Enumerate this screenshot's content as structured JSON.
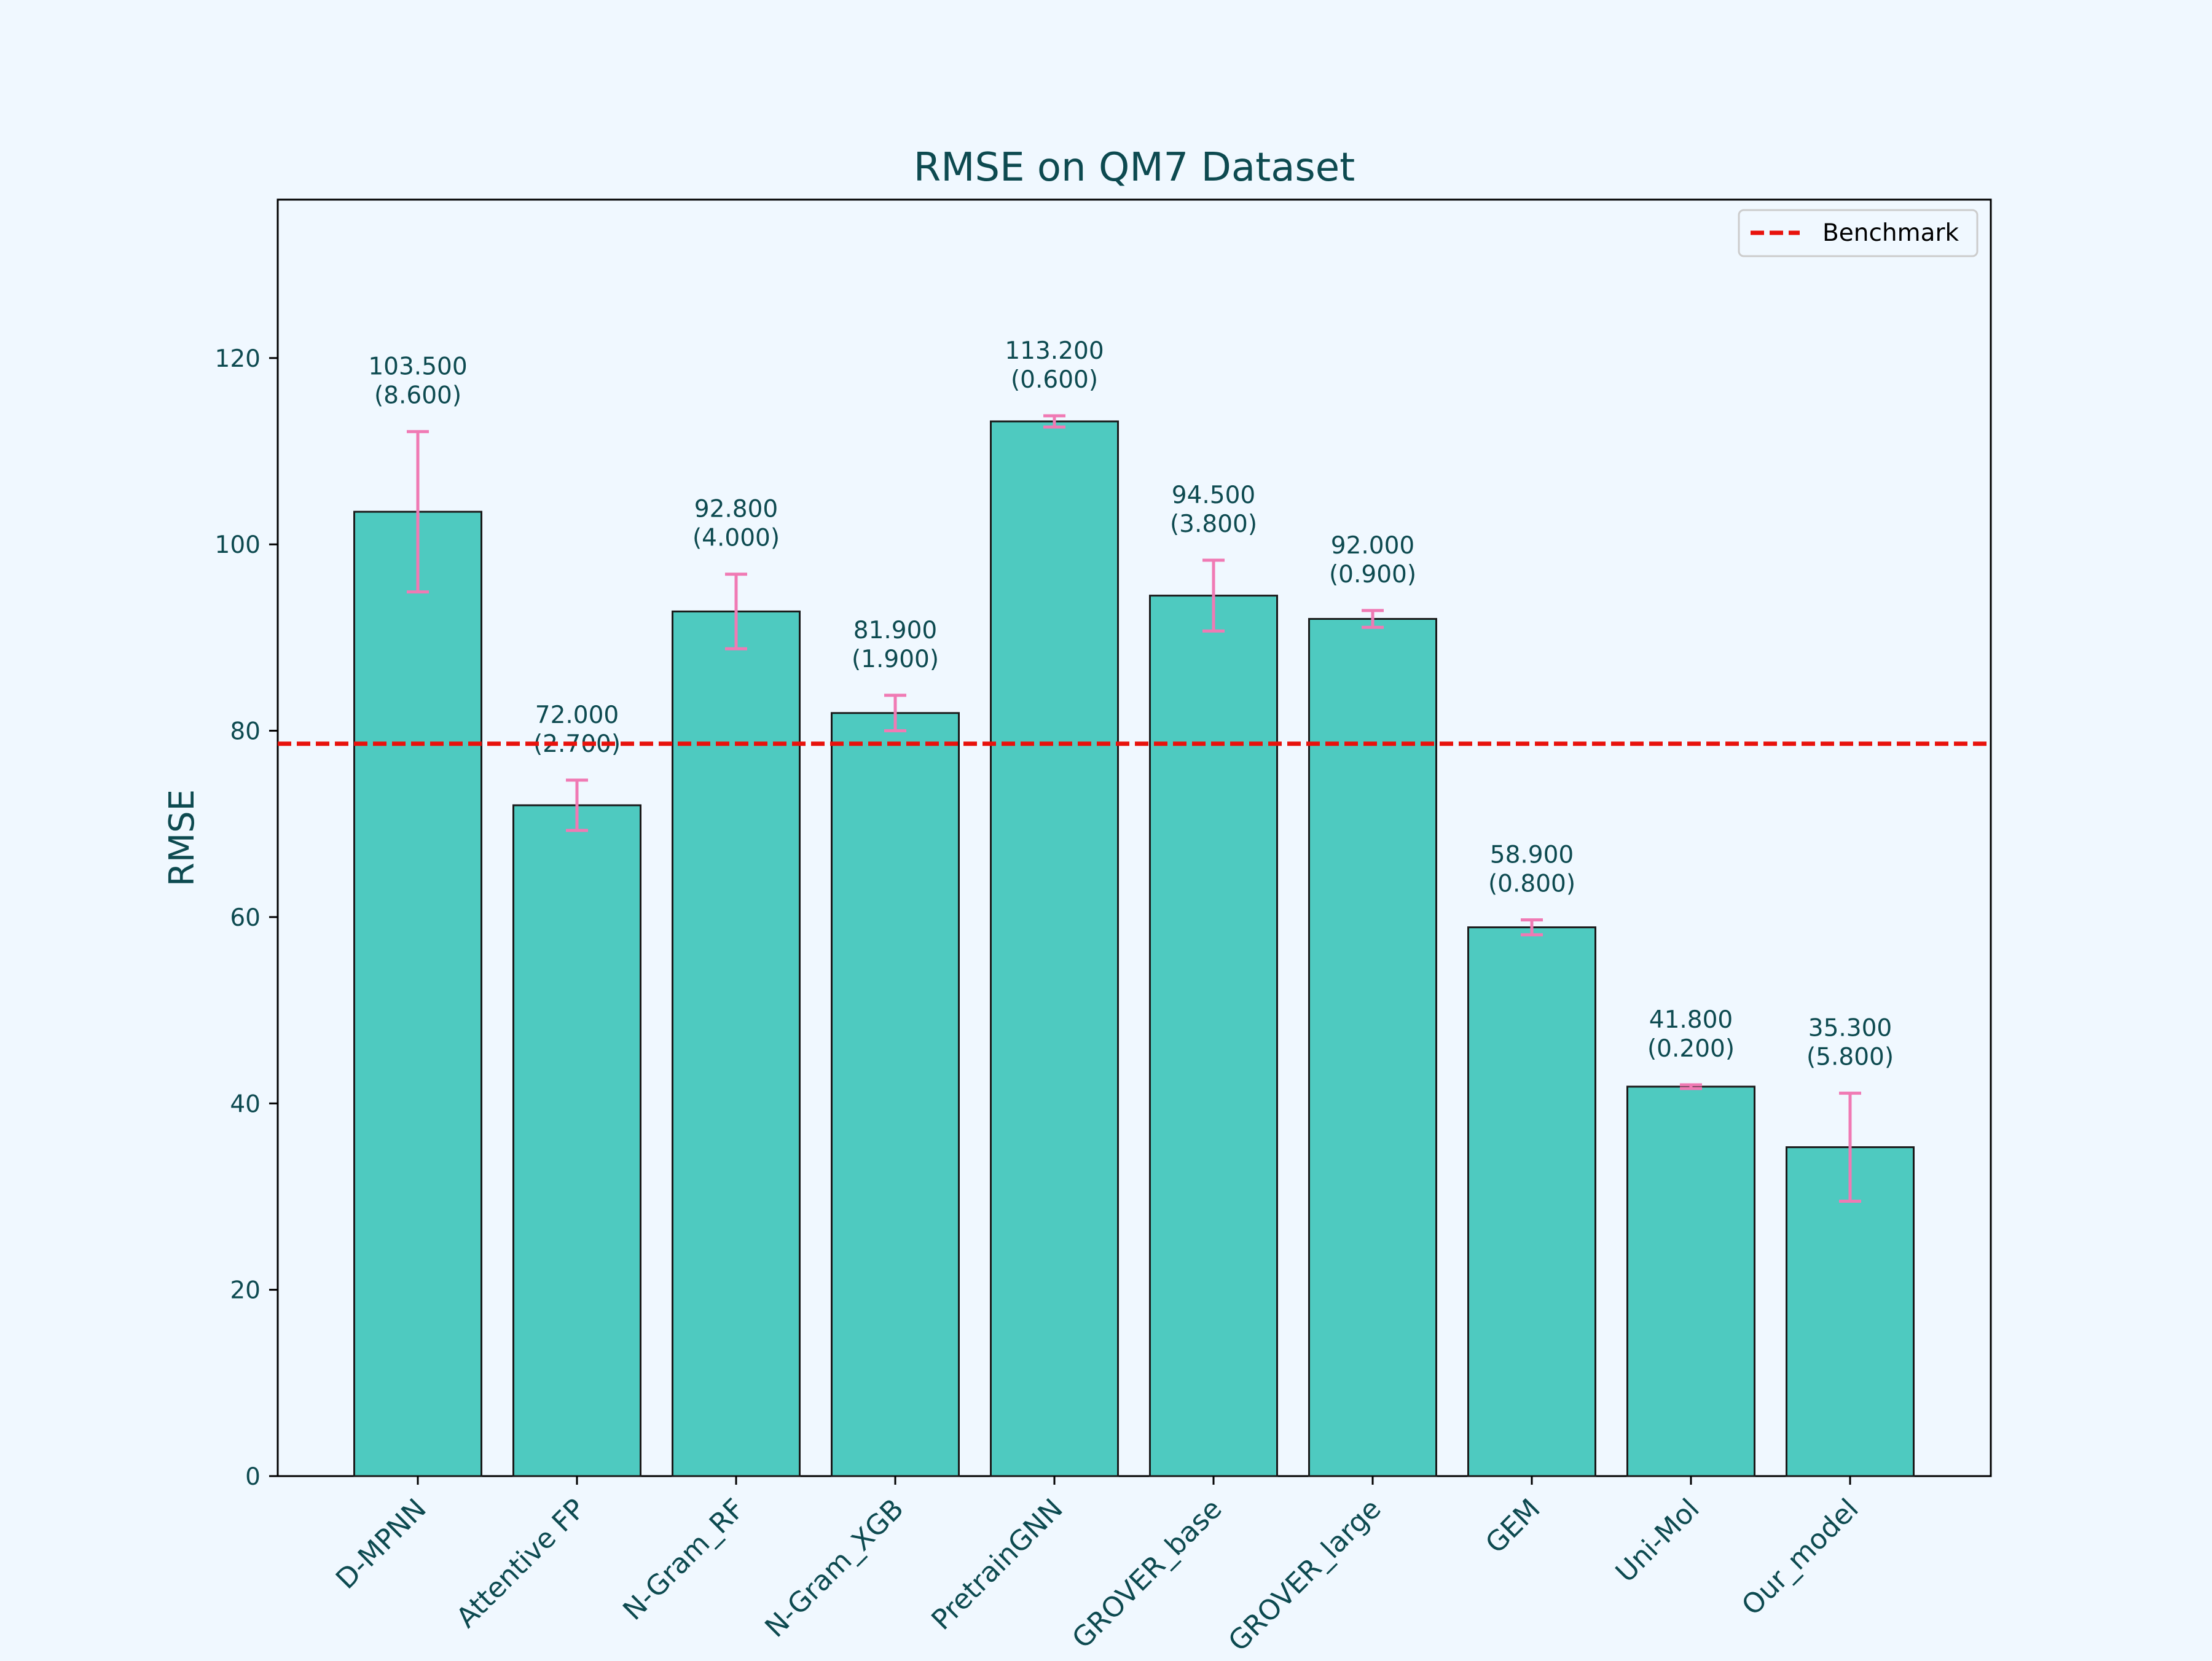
{
  "chart_data": {
    "type": "bar",
    "title": "RMSE on QM7 Dataset",
    "xlabel": "",
    "ylabel": "RMSE",
    "ylim": [
      0,
      137
    ],
    "yticks": [
      0,
      20,
      40,
      60,
      80,
      100,
      120
    ],
    "grid": false,
    "legend_position": "top-right",
    "categories": [
      "D-MPNN",
      "Attentive FP",
      "N-Gram_RF",
      "N-Gram_XGB",
      "PretrainGNN",
      "GROVER_base",
      "GROVER_large",
      "GEM",
      "Uni-Mol",
      "Our_model"
    ],
    "series": [
      {
        "values": [
          103.5,
          72.0,
          92.8,
          81.9,
          113.2,
          94.5,
          92.0,
          58.9,
          41.8,
          35.3
        ],
        "errors": [
          8.6,
          2.7,
          4.0,
          1.9,
          0.6,
          3.8,
          0.9,
          0.8,
          0.2,
          5.8
        ]
      }
    ],
    "value_labels": [
      "103.500",
      "72.000",
      "92.800",
      "81.900",
      "113.200",
      "94.500",
      "92.000",
      "58.900",
      "41.800",
      "35.300"
    ],
    "error_labels": [
      "(8.600)",
      "(2.700)",
      "(4.000)",
      "(1.900)",
      "(0.600)",
      "(3.800)",
      "(0.900)",
      "(0.800)",
      "(0.200)",
      "(5.800)"
    ],
    "reference_line": {
      "name": "Benchmark",
      "value": 78.6
    },
    "colors": {
      "background": "#f0f8ff",
      "bar_fill": "#4ecac0",
      "bar_edge": "#1a1a1a",
      "error_bar": "#f07ab4",
      "benchmark_line": "#e8120c",
      "text": "#0d4a50",
      "axes": "#000000"
    }
  }
}
